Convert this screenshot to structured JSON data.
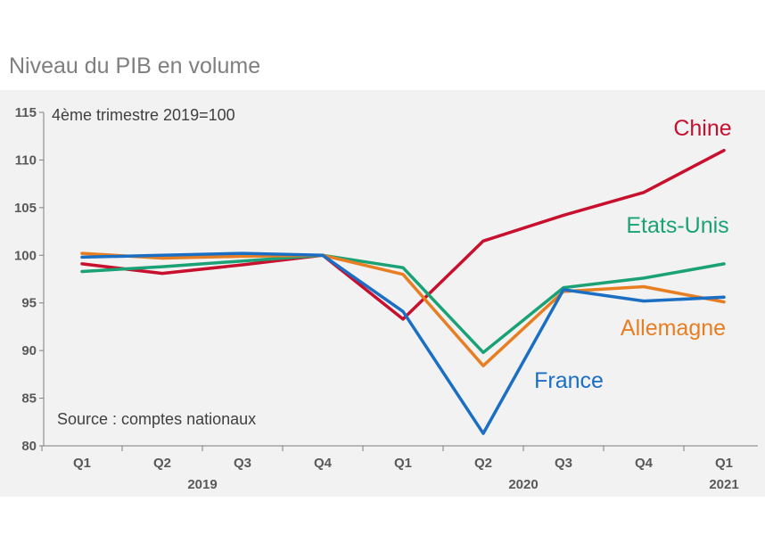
{
  "chart_data": {
    "type": "line",
    "title": "Niveau du PIB en volume",
    "subtitle": "4ème trimestre 2019=100",
    "source": "Source : comptes nationaux",
    "categories": [
      "Q1",
      "Q2",
      "Q3",
      "Q4",
      "Q1",
      "Q2",
      "Q3",
      "Q4",
      "Q1"
    ],
    "years": [
      {
        "label": "2019",
        "start": 0,
        "end": 3
      },
      {
        "label": "2020",
        "start": 4,
        "end": 7
      },
      {
        "label": "2021",
        "start": 8,
        "end": 8
      }
    ],
    "ylim": [
      80,
      115
    ],
    "yticks": [
      80,
      85,
      90,
      95,
      100,
      105,
      110,
      115
    ],
    "grid": false,
    "series": [
      {
        "name": "Chine",
        "color": "#c8102e",
        "values": [
          99.1,
          98.1,
          99.0,
          100.0,
          93.3,
          101.5,
          104.2,
          106.6,
          111.0
        ]
      },
      {
        "name": "Etats-Unis",
        "color": "#1aa276",
        "values": [
          98.3,
          98.8,
          99.4,
          100.0,
          98.7,
          89.8,
          96.6,
          97.6,
          99.1
        ]
      },
      {
        "name": "Allemagne",
        "color": "#e87e22",
        "values": [
          100.2,
          99.7,
          99.9,
          100.0,
          98.0,
          88.4,
          96.2,
          96.7,
          95.1
        ]
      },
      {
        "name": "France",
        "color": "#1a6fc4",
        "values": [
          99.8,
          100.0,
          100.2,
          100.0,
          94.1,
          81.3,
          96.4,
          95.2,
          95.6
        ]
      }
    ]
  }
}
